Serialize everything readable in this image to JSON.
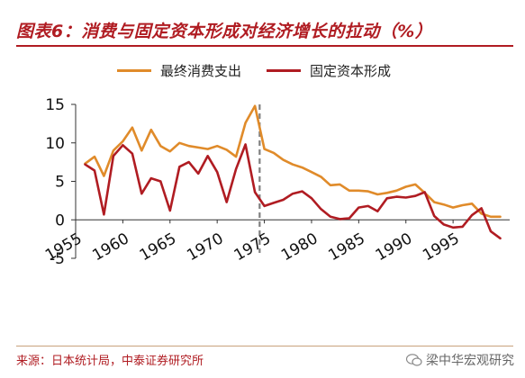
{
  "title": "图表6：消费与固定资本形成对经济增长的拉动（%）",
  "legend": [
    {
      "label": "最终消费支出",
      "color": "#e08b2a"
    },
    {
      "label": "固定资本形成",
      "color": "#b01c22"
    }
  ],
  "source": "来源：日本统计局，中泰证券研究所",
  "watermark": "梁中华宏观研究",
  "chart_data": {
    "type": "line",
    "title": "消费与固定资本形成对经济增长的拉动（%）",
    "xlabel": "",
    "ylabel": "",
    "xlim": [
      1955,
      2001
    ],
    "ylim": [
      -5,
      15
    ],
    "yticks": [
      15,
      10,
      5,
      0,
      -5
    ],
    "xticks": [
      1955,
      1960,
      1965,
      1970,
      1975,
      1980,
      1985,
      1990,
      1995
    ],
    "reference_line": {
      "x": 1974.5,
      "style": "dashed",
      "color": "#808080"
    },
    "legend_position": "top",
    "series": [
      {
        "name": "最终消费支出",
        "color": "#e08b2a",
        "x": [
          1956,
          1957,
          1958,
          1959,
          1960,
          1961,
          1962,
          1963,
          1964,
          1965,
          1966,
          1967,
          1968,
          1969,
          1970,
          1971,
          1972,
          1973,
          1974,
          1975,
          1976,
          1977,
          1978,
          1979,
          1980,
          1981,
          1982,
          1983,
          1984,
          1985,
          1986,
          1987,
          1988,
          1989,
          1990,
          1991,
          1992,
          1993,
          1994,
          1995,
          1996,
          1997,
          1998,
          1999,
          2000
        ],
        "y": [
          7.3,
          8.2,
          5.7,
          9.0,
          10.2,
          12.0,
          9.0,
          11.7,
          9.6,
          8.9,
          10.0,
          9.6,
          9.4,
          9.2,
          9.6,
          9.1,
          8.2,
          12.6,
          14.8,
          9.2,
          8.7,
          7.8,
          7.2,
          6.8,
          6.2,
          5.6,
          4.5,
          4.6,
          3.8,
          3.8,
          3.7,
          3.3,
          3.5,
          3.8,
          4.3,
          4.6,
          3.5,
          2.3,
          2.0,
          1.6,
          1.9,
          2.1,
          0.8,
          0.4,
          0.4
        ]
      },
      {
        "name": "固定资本形成",
        "color": "#b01c22",
        "x": [
          1956,
          1957,
          1958,
          1959,
          1960,
          1961,
          1962,
          1963,
          1964,
          1965,
          1966,
          1967,
          1968,
          1969,
          1970,
          1971,
          1972,
          1973,
          1974,
          1975,
          1976,
          1977,
          1978,
          1979,
          1980,
          1981,
          1982,
          1983,
          1984,
          1985,
          1986,
          1987,
          1988,
          1989,
          1990,
          1991,
          1992,
          1993,
          1994,
          1995,
          1996,
          1997,
          1998,
          1999,
          2000
        ],
        "y": [
          7.2,
          6.4,
          0.7,
          8.3,
          9.7,
          8.6,
          3.4,
          5.4,
          5.0,
          1.2,
          6.9,
          7.5,
          6.0,
          8.3,
          6.2,
          2.3,
          6.6,
          9.8,
          3.6,
          1.8,
          2.2,
          2.6,
          3.4,
          3.7,
          2.8,
          1.4,
          0.4,
          0.1,
          0.2,
          1.6,
          1.8,
          1.1,
          2.8,
          3.0,
          2.9,
          3.1,
          3.6,
          0.5,
          -0.6,
          -1.0,
          -0.9,
          0.6,
          1.5,
          -1.5,
          -2.4
        ]
      }
    ]
  }
}
